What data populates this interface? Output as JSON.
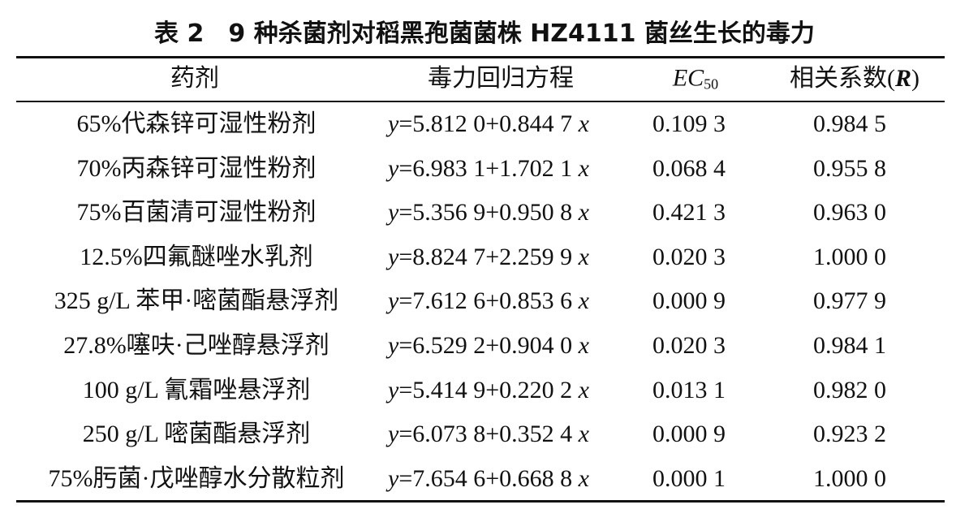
{
  "title": "表 2　9 种杀菌剂对稻黑孢菌菌株 HZ4111 菌丝生长的毒力",
  "table": {
    "headers": [
      "药剂",
      "毒力回归方程",
      "EC50",
      "相关系数(R)"
    ],
    "rows": [
      [
        "65%代森锌可湿性粉剂",
        "y=5.812 0+0.844 7 x",
        "0.109 3",
        "0.984 5"
      ],
      [
        "70%丙森锌可湿性粉剂",
        "y=6.983 1+1.702 1 x",
        "0.068 4",
        "0.955 8"
      ],
      [
        "75%百菌清可湿性粉剂",
        "y=5.356 9+0.950 8 x",
        "0.421 3",
        "0.963 0"
      ],
      [
        "12.5%四氟醚唑水乳剂",
        "y=8.824 7+2.259 9 x",
        "0.020 3",
        "1.000 0"
      ],
      [
        "325 g/L 苯甲·嘧菌酯悬浮剂",
        "y=7.612 6+0.853 6 x",
        "0.000 9",
        "0.977 9"
      ],
      [
        "27.8%噻呋·己唑醇悬浮剂",
        "y=6.529 2+0.904 0 x",
        "0.020 3",
        "0.984 1"
      ],
      [
        "100 g/L 氰霜唑悬浮剂",
        "y=5.414 9+0.220 2 x",
        "0.013 1",
        "0.982 0"
      ],
      [
        "250 g/L 嘧菌酯悬浮剂",
        "y=6.073 8+0.352 4 x",
        "0.000 9",
        "0.923 2"
      ],
      [
        "75%肟菌·戊唑醇水分散粒剂",
        "y=7.654 6+0.668 8 x",
        "0.000 1",
        "1.000 0"
      ]
    ]
  }
}
